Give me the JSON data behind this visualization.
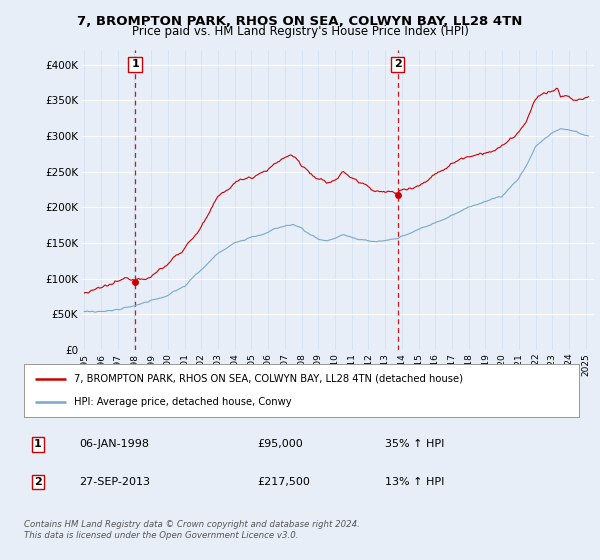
{
  "title1": "7, BROMPTON PARK, RHOS ON SEA, COLWYN BAY, LL28 4TN",
  "title2": "Price paid vs. HM Land Registry's House Price Index (HPI)",
  "bg_color": "#e8eef8",
  "plot_bg_color": "#e8eef8",
  "red_color": "#cc0000",
  "blue_color": "#7aa8cc",
  "sale1_date_num": 1998.04,
  "sale1_price": 95000,
  "sale2_date_num": 2013.75,
  "sale2_price": 217500,
  "ylim": [
    0,
    420000
  ],
  "yticks": [
    0,
    50000,
    100000,
    150000,
    200000,
    250000,
    300000,
    350000,
    400000
  ],
  "ytick_labels": [
    "£0",
    "£50K",
    "£100K",
    "£150K",
    "£200K",
    "£250K",
    "£300K",
    "£350K",
    "£400K"
  ],
  "xlim_start": 1994.8,
  "xlim_end": 2025.5,
  "legend_label1": "7, BROMPTON PARK, RHOS ON SEA, COLWYN BAY, LL28 4TN (detached house)",
  "legend_label2": "HPI: Average price, detached house, Conwy",
  "note1_label": "1",
  "note1_date": "06-JAN-1998",
  "note1_price": "£95,000",
  "note1_hpi": "35% ↑ HPI",
  "note2_label": "2",
  "note2_date": "27-SEP-2013",
  "note2_price": "£217,500",
  "note2_hpi": "13% ↑ HPI",
  "footer": "Contains HM Land Registry data © Crown copyright and database right 2024.\nThis data is licensed under the Open Government Licence v3.0."
}
